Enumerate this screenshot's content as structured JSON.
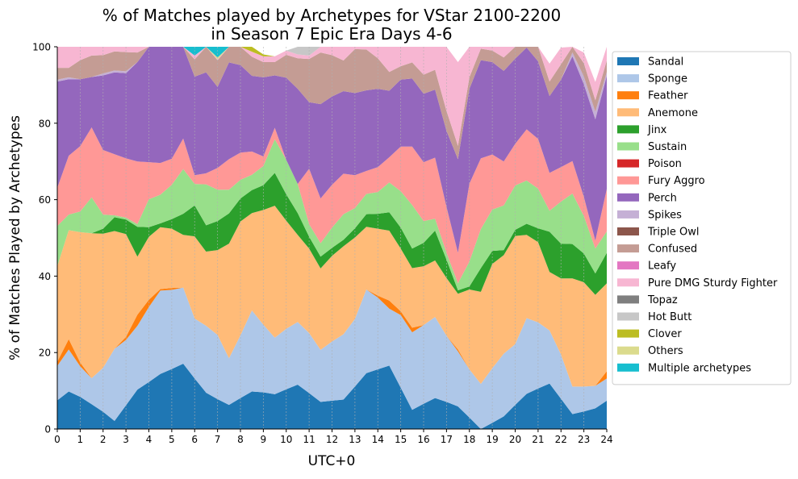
{
  "chart_data": {
    "type": "area",
    "stacked": true,
    "title_line1": "% of Matches played by Archetypes for VStar 2100-2200",
    "title_line2": "in Season 7 Epic Era Days 4-6",
    "xlabel": "UTC+0",
    "ylabel": "% of Matches Played by Archetypes",
    "xlim": [
      0,
      24
    ],
    "ylim": [
      0,
      100
    ],
    "x_ticks": [
      "0",
      "1",
      "2",
      "3",
      "4",
      "5",
      "6",
      "7",
      "8",
      "9",
      "10",
      "11",
      "12",
      "13",
      "14",
      "15",
      "16",
      "17",
      "18",
      "19",
      "20",
      "21",
      "22",
      "23",
      "24"
    ],
    "y_ticks": [
      "0",
      "20",
      "40",
      "60",
      "80",
      "100"
    ],
    "grid": "vertical dashed",
    "legend_position": "right, outside",
    "x": [
      0,
      0.5,
      1,
      1.5,
      2,
      2.5,
      3,
      3.5,
      4,
      4.5,
      5,
      5.5,
      6,
      6.5,
      7,
      7.5,
      8,
      8.5,
      9,
      9.5,
      10,
      10.5,
      11,
      11.5,
      12,
      12.5,
      13,
      13.5,
      14,
      14.5,
      15,
      15.5,
      16,
      16.5,
      17,
      17.5,
      18,
      18.5,
      19,
      19.5,
      20,
      20.5,
      21,
      21.5,
      22,
      22.5,
      23,
      23.5,
      24
    ],
    "series": [
      {
        "name": "Sandal",
        "color": "#1f77b4",
        "values": [
          7.5,
          9.8,
          8.4,
          6.5,
          4.5,
          2.1,
          6.2,
          10.3,
          12.3,
          14.4,
          15.7,
          17.1,
          13.2,
          9.5,
          7.8,
          6.3,
          8.1,
          9.8,
          9.6,
          9.1,
          10.4,
          11.6,
          9.4,
          7.1,
          7.4,
          7.7,
          11.1,
          14.6,
          15.6,
          16.6,
          10.8,
          5.0,
          6.6,
          8.1,
          7.1,
          5.9,
          3.0,
          0.0,
          1.6,
          3.3,
          6.3,
          9.2,
          10.6,
          11.9,
          7.9,
          3.9,
          4.6,
          5.4,
          7.4
        ]
      },
      {
        "name": "Sponge",
        "color": "#aec7e8",
        "values": [
          9.0,
          11.0,
          8.0,
          6.8,
          11.5,
          18.9,
          17.1,
          16.7,
          19.6,
          21.8,
          20.7,
          19.9,
          15.7,
          17.5,
          16.8,
          12.2,
          16.4,
          21.2,
          17.7,
          14.8,
          15.8,
          16.4,
          15.7,
          13.6,
          15.5,
          17.1,
          17.7,
          21.9,
          18.8,
          14.9,
          19.0,
          20.3,
          20.6,
          21.2,
          17.3,
          14.4,
          12.6,
          11.8,
          14.3,
          16.4,
          15.9,
          19.8,
          17.3,
          13.9,
          11.6,
          7.2,
          6.5,
          5.9,
          5.8
        ]
      },
      {
        "name": "Feather",
        "color": "#ff7f0e",
        "values": [
          1.1,
          2.7,
          1.0,
          0.0,
          0.0,
          0.0,
          0.8,
          2.9,
          1.9,
          0.4,
          0.5,
          0.0,
          0.0,
          0.0,
          0.0,
          0.0,
          0.0,
          0.0,
          0.0,
          0.0,
          0.0,
          0.0,
          0.0,
          0.0,
          0.0,
          0.0,
          0.0,
          0.0,
          0.5,
          2.1,
          1.0,
          1.2,
          0.0,
          0.0,
          0.0,
          0.5,
          0.0,
          0.0,
          0.0,
          0.0,
          0.0,
          0.0,
          0.0,
          0.0,
          0.0,
          0.0,
          0.0,
          0.0,
          1.9
        ]
      },
      {
        "name": "Anemone",
        "color": "#ffbb78",
        "values": [
          25.0,
          28.5,
          34.1,
          37.9,
          35.1,
          30.8,
          26.9,
          15.2,
          16.5,
          16.2,
          15.5,
          13.8,
          21.5,
          19.4,
          22.2,
          30.0,
          29.8,
          25.5,
          30.0,
          34.5,
          28.3,
          22.8,
          22.1,
          21.3,
          22.4,
          23.0,
          21.3,
          16.4,
          17.5,
          18.3,
          16.4,
          15.6,
          15.4,
          14.8,
          15.1,
          14.6,
          20.9,
          24.1,
          27.3,
          25.8,
          28.3,
          21.8,
          21.0,
          15.3,
          19.9,
          28.3,
          27.3,
          23.8,
          23.0
        ]
      },
      {
        "name": "Jinx",
        "color": "#2ca02c",
        "values": [
          0.0,
          0.0,
          0.0,
          0.0,
          1.3,
          3.6,
          3.8,
          7.8,
          2.5,
          1.0,
          2.5,
          5.5,
          8.1,
          6.9,
          7.6,
          7.9,
          6.0,
          6.0,
          6.5,
          8.6,
          6.9,
          5.7,
          3.1,
          3.1,
          2.1,
          1.7,
          2.4,
          3.3,
          3.9,
          4.8,
          5.5,
          5.1,
          6.1,
          7.8,
          4.8,
          0.9,
          0.8,
          6.2,
          3.4,
          1.3,
          1.6,
          2.9,
          3.6,
          10.5,
          9.1,
          9.0,
          7.5,
          5.6,
          8.0
        ]
      },
      {
        "name": "Sustain",
        "color": "#98df8a",
        "values": [
          10.5,
          4.1,
          5.4,
          9.4,
          3.7,
          0.5,
          0.5,
          0.7,
          7.3,
          7.5,
          9.0,
          11.7,
          5.6,
          10.7,
          8.2,
          6.2,
          4.9,
          4.0,
          5.0,
          8.8,
          9.0,
          7.6,
          3.3,
          3.5,
          5.3,
          6.7,
          5.3,
          5.3,
          5.7,
          7.8,
          9.5,
          11.4,
          5.7,
          3.1,
          1.8,
          1.8,
          6.5,
          10.2,
          10.8,
          11.7,
          11.6,
          11.3,
          10.4,
          5.5,
          11.0,
          13.2,
          9.8,
          6.5,
          5.6
        ]
      },
      {
        "name": "Poison",
        "color": "#d62728",
        "values": [
          0,
          0,
          0,
          0,
          0,
          0,
          0,
          0,
          0,
          0,
          0,
          0,
          0,
          0,
          0,
          0,
          0,
          0,
          0,
          0,
          0,
          0,
          0,
          0,
          0,
          0,
          0,
          0,
          0,
          0,
          0,
          0,
          0,
          0,
          0,
          0,
          0,
          0,
          0,
          0,
          0,
          0,
          0,
          0,
          0,
          0,
          0,
          0,
          0
        ]
      },
      {
        "name": "Fury Aggro",
        "color": "#ff9896",
        "values": [
          10.0,
          15.4,
          17.1,
          18.3,
          16.9,
          16.0,
          15.5,
          16.4,
          9.7,
          8.3,
          6.8,
          8.0,
          2.3,
          2.9,
          5.7,
          8.0,
          7.1,
          6.1,
          2.5,
          3.0,
          0.0,
          0.0,
          14.5,
          11.7,
          11.2,
          10.6,
          8.6,
          6.0,
          6.5,
          6.6,
          11.7,
          15.3,
          15.4,
          16.0,
          12.0,
          8.0,
          20.4,
          18.5,
          14.4,
          11.5,
          10.9,
          13.4,
          13.0,
          9.9,
          9.0,
          8.5,
          5.0,
          2.1,
          11.1
        ]
      },
      {
        "name": "Perch",
        "color": "#9467bd",
        "values": [
          27.8,
          20.0,
          17.5,
          13.2,
          19.5,
          21.4,
          22.3,
          26.0,
          30.2,
          32.0,
          29.9,
          24.3,
          25.8,
          26.4,
          21.2,
          25.3,
          22.9,
          19.8,
          20.7,
          13.7,
          21.5,
          24.9,
          17.4,
          24.7,
          23.1,
          21.6,
          21.5,
          21.1,
          20.5,
          17.4,
          17.5,
          17.8,
          17.9,
          17.8,
          19.9,
          24.5,
          24.8,
          25.7,
          24.2,
          23.7,
          22.3,
          21.4,
          20.3,
          20.1,
          22.9,
          27.4,
          29.5,
          31.7,
          29.6
        ]
      },
      {
        "name": "Spikes",
        "color": "#c5b0d5",
        "values": [
          0.5,
          0.5,
          0.0,
          0.0,
          0.5,
          0.5,
          0.5,
          0.0,
          0.0,
          0.0,
          0.0,
          0.0,
          0.0,
          0.0,
          0.0,
          0.0,
          0.0,
          0.0,
          0.0,
          0.0,
          0.0,
          0.0,
          0.0,
          0.0,
          0.0,
          0.0,
          0.0,
          0.0,
          0.0,
          0.0,
          0.0,
          0.0,
          0.0,
          0.0,
          0.0,
          0.0,
          0.0,
          0.0,
          0.0,
          0.0,
          0.0,
          0.0,
          0.0,
          0.0,
          0.0,
          1.0,
          2.0,
          2.0,
          1.0
        ]
      },
      {
        "name": "Triple Owl",
        "color": "#8c564b",
        "values": [
          0,
          0,
          0,
          0,
          0,
          0,
          0,
          0,
          0,
          0,
          0,
          0,
          0,
          0,
          0,
          0,
          0,
          0,
          0,
          0,
          0,
          0,
          0,
          0,
          0,
          0,
          0,
          0,
          0,
          0,
          0,
          0,
          0,
          0,
          0,
          0,
          0,
          0,
          0,
          0,
          0,
          0,
          0,
          0,
          0,
          0,
          0,
          0,
          0
        ]
      },
      {
        "name": "Confused",
        "color": "#c49c94",
        "values": [
          3.1,
          2.5,
          5.0,
          5.6,
          4.8,
          5.0,
          5.0,
          2.5,
          2.0,
          1.5,
          1.3,
          2.7,
          4.5,
          7.0,
          7.0,
          7.0,
          5.8,
          5.0,
          4.0,
          3.5,
          6.0,
          8.0,
          11.3,
          13.5,
          10.8,
          8.0,
          11.5,
          10.7,
          8.0,
          4.9,
          3.5,
          4.2,
          5.0,
          5.2,
          5.2,
          3.5,
          3.0,
          3.0,
          3.0,
          3.5,
          3.5,
          3.8,
          3.8,
          3.8,
          4.0,
          3.0,
          3.5,
          3.0,
          3.0
        ]
      },
      {
        "name": "Leafy",
        "color": "#e377c2",
        "values": [
          0,
          0,
          0,
          0,
          0,
          0,
          0,
          0,
          0,
          0,
          0,
          0,
          0,
          0,
          0,
          0,
          0,
          0,
          0,
          0,
          0,
          0,
          0,
          0,
          0,
          0,
          0,
          0,
          0,
          0,
          0,
          0,
          0,
          0,
          0,
          0,
          0,
          0,
          0,
          0,
          0,
          0,
          0,
          0,
          0,
          0,
          0,
          0,
          0
        ]
      },
      {
        "name": "Pure DMG Sturdy Fighter",
        "color": "#f7b6d2",
        "values": [
          5.5,
          5.5,
          3.5,
          2.3,
          3.7,
          1.2,
          1.4,
          1.5,
          0.0,
          0.8,
          1.3,
          1.0,
          1.0,
          0.0,
          0.2,
          0.0,
          0.6,
          1.3,
          1.5,
          1.5,
          1.1,
          1.0,
          0.9,
          1.5,
          2.2,
          3.6,
          1.4,
          0.7,
          3.0,
          7.0,
          6.9,
          7.1,
          7.3,
          6.0,
          16.8,
          21.9,
          8.0,
          5.5,
          5.0,
          7.0,
          5.2,
          0.6,
          0.0,
          4.7,
          4.4,
          0.0,
          2.8,
          4.8,
          4.6
        ]
      },
      {
        "name": "Topaz",
        "color": "#7f7f7f",
        "values": [
          0,
          0,
          0,
          0,
          0,
          0,
          0,
          0,
          0,
          0,
          0,
          0,
          0,
          0,
          0,
          0,
          0,
          0,
          0,
          0,
          0,
          0,
          0,
          0,
          0,
          0,
          0,
          0,
          0,
          0,
          0,
          0,
          0,
          0,
          0,
          0,
          0,
          0,
          0,
          0,
          0,
          0,
          0,
          0,
          0,
          0,
          0,
          0,
          0
        ]
      },
      {
        "name": "Hot Butt",
        "color": "#c7c7c7",
        "values": [
          0,
          0,
          0,
          0,
          0,
          0,
          0,
          0,
          0,
          0,
          0,
          0,
          0,
          0,
          0,
          0,
          0,
          0,
          0,
          0,
          0,
          2.0,
          2.5,
          0.5,
          0,
          0,
          0,
          0,
          0,
          0,
          0,
          0,
          0,
          0,
          0,
          0,
          0,
          0,
          0,
          0,
          0,
          0,
          0,
          0,
          0,
          0,
          0,
          0,
          0
        ]
      },
      {
        "name": "Clover",
        "color": "#bcbd22",
        "values": [
          0,
          0,
          0,
          0,
          0,
          0,
          0,
          0,
          0,
          0,
          0,
          0,
          0,
          0,
          0,
          0,
          1.0,
          1.5,
          0.5,
          0,
          0,
          0,
          0,
          0,
          0,
          0,
          0,
          0,
          0,
          0,
          0,
          0,
          0,
          0,
          0,
          0,
          0,
          0,
          0,
          0,
          0,
          0,
          0,
          0,
          0,
          0,
          0,
          0,
          0
        ]
      },
      {
        "name": "Others",
        "color": "#dbdb8d",
        "values": [
          0,
          0,
          0,
          0,
          0,
          0,
          0,
          0,
          0,
          0,
          0,
          0,
          0,
          0,
          0.5,
          0.5,
          0.5,
          0,
          0,
          0,
          0,
          0,
          0,
          0,
          0,
          0,
          0,
          0,
          0,
          0.4,
          0.3,
          0.3,
          0,
          0,
          0,
          0,
          0,
          0,
          0,
          0,
          0,
          0,
          0,
          0,
          0,
          0,
          0,
          0,
          0
        ]
      },
      {
        "name": "Multiple archetypes",
        "color": "#17becf",
        "values": [
          0,
          0,
          0,
          0,
          0,
          0,
          0,
          0,
          0,
          0,
          0,
          0,
          2.3,
          0.6,
          3.3,
          3.6,
          4.3,
          0,
          0,
          0,
          0,
          0,
          0,
          0,
          0,
          0,
          0,
          0,
          0,
          0,
          0,
          0,
          0,
          0,
          0,
          0,
          0,
          0,
          0,
          0,
          0,
          0,
          0,
          0,
          0,
          0,
          0,
          0,
          0
        ]
      }
    ]
  }
}
